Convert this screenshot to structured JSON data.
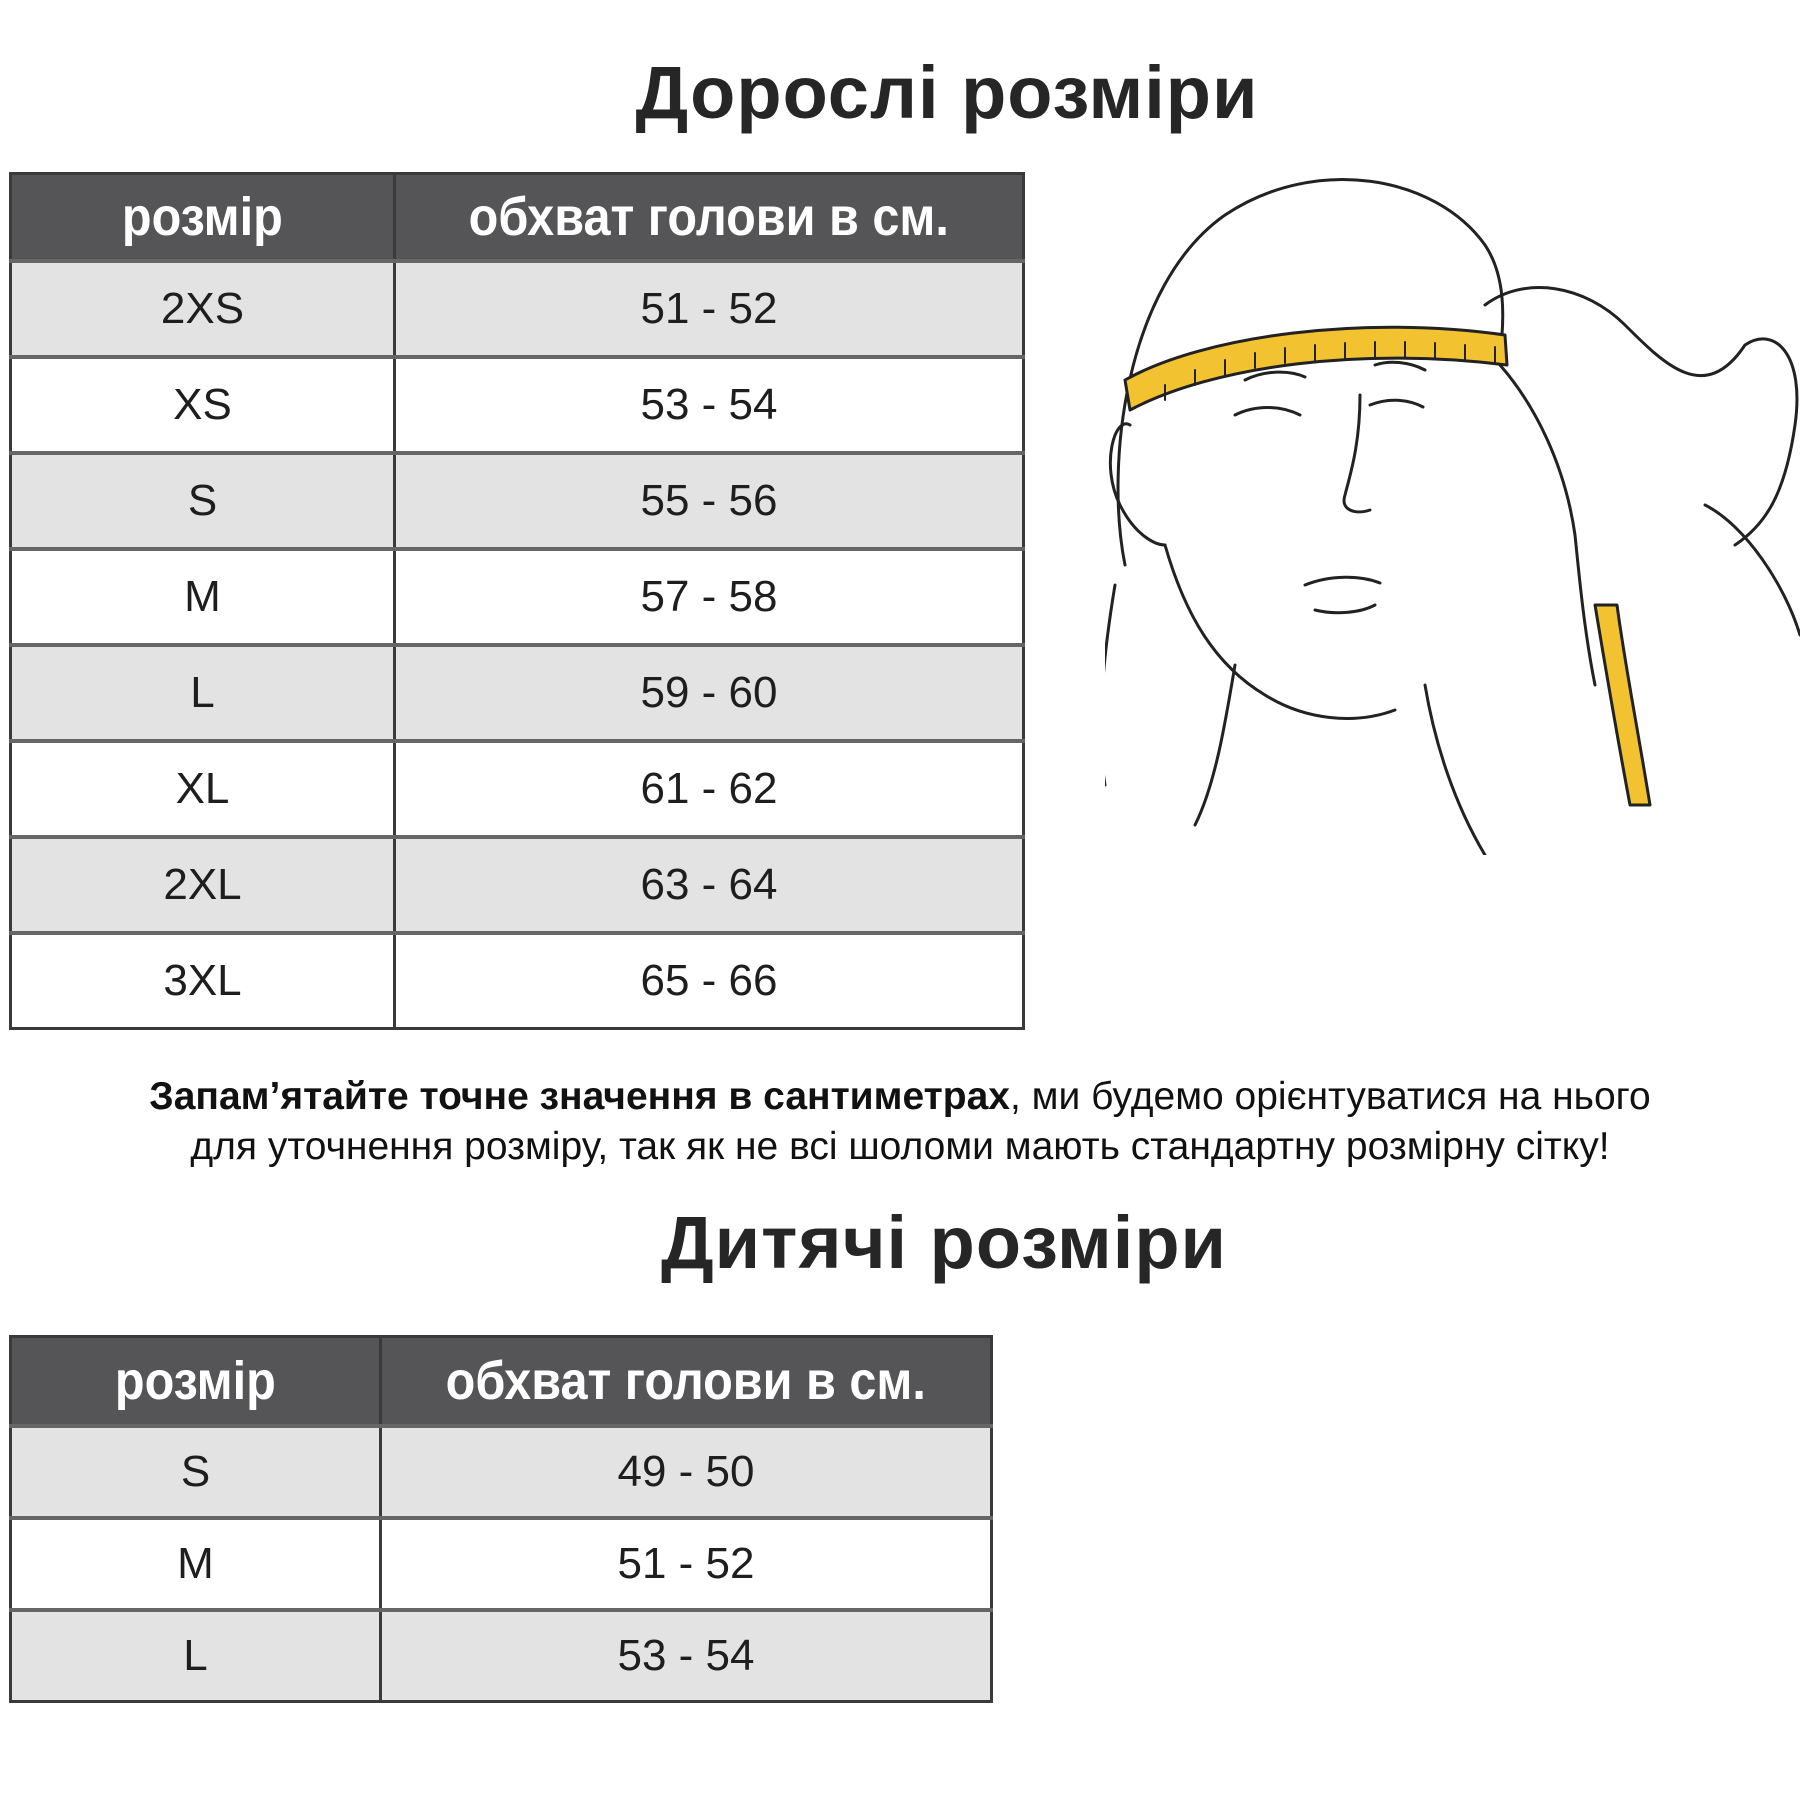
{
  "adult": {
    "title": "Дорослі розміри",
    "headers": [
      "розмір",
      "обхват голови в см."
    ],
    "rows": [
      [
        "2XS",
        "51 - 52"
      ],
      [
        "XS",
        "53 - 54"
      ],
      [
        "S",
        "55 - 56"
      ],
      [
        "M",
        "57 - 58"
      ],
      [
        "L",
        "59 - 60"
      ],
      [
        "XL",
        "61 - 62"
      ],
      [
        "2XL",
        "63 - 64"
      ],
      [
        "3XL",
        "65 - 66"
      ]
    ]
  },
  "note": {
    "bold": "Запам’ятайте точне значення в сантиметрах",
    "line1_rest": ", ми будемо орієнтуватися на нього",
    "line2": "для уточнення розміру, так як не всі шоломи мають стандартну розмірну сітку!"
  },
  "kids": {
    "title": "Дитячі розміри",
    "headers": [
      "розмір",
      "обхват голови в см."
    ],
    "rows": [
      [
        "S",
        "49 - 50"
      ],
      [
        "M",
        "51 - 52"
      ],
      [
        "L",
        "53 - 54"
      ]
    ]
  },
  "illustration": {
    "icon": "head-measuring-tape-illustration",
    "tape_color": "#f2c230"
  }
}
